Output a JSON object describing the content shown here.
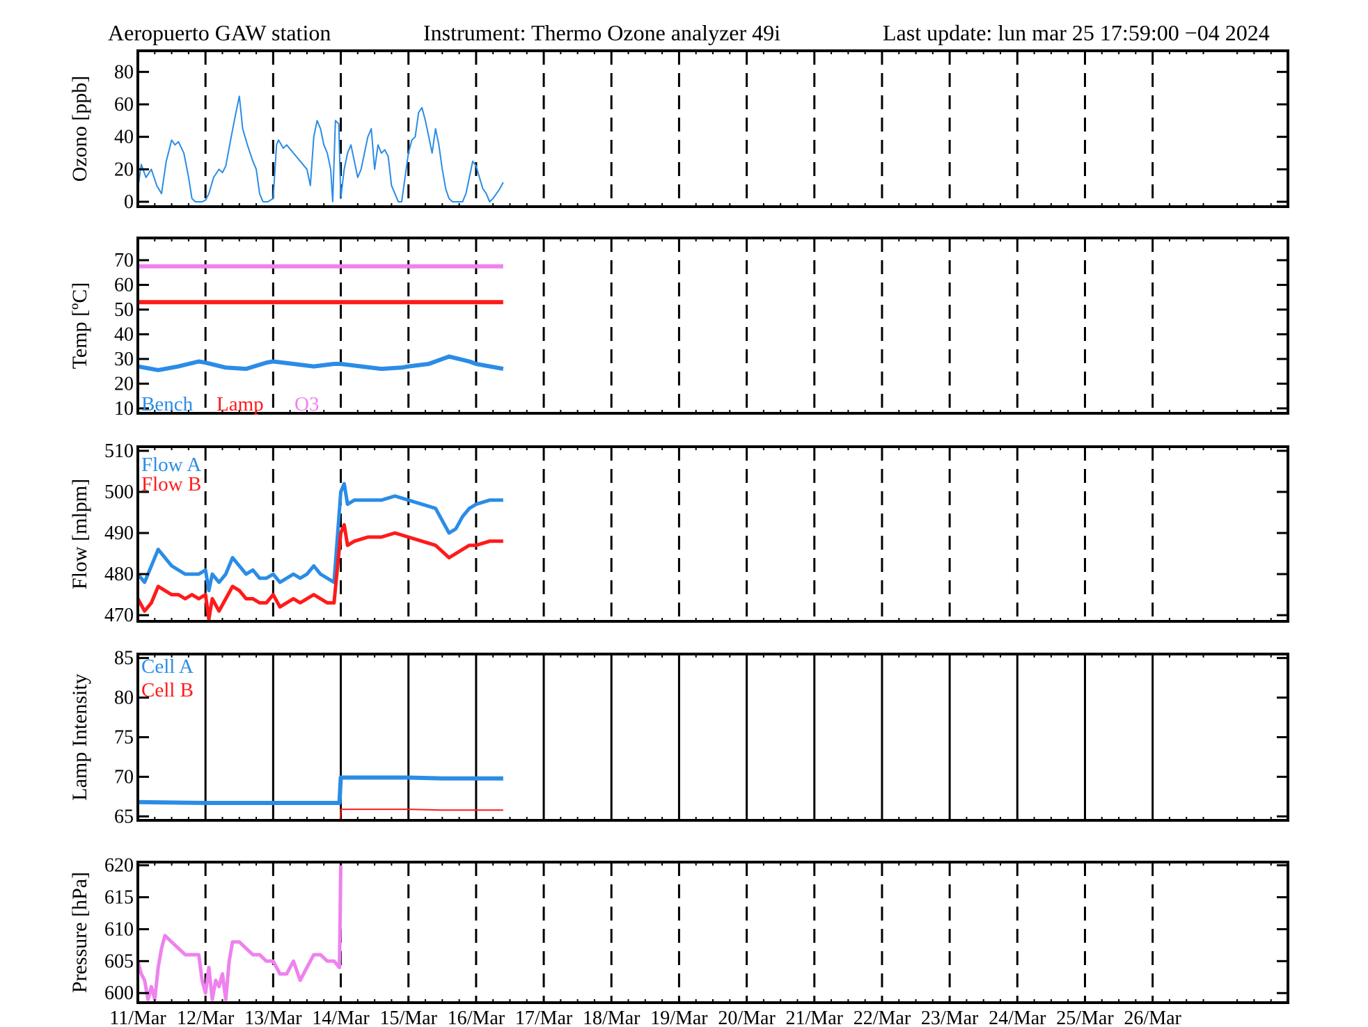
{
  "header": {
    "station": "Aeropuerto GAW station",
    "instrument": "Instrument: Thermo Ozone analyzer  49i",
    "last_update": "Last update: lun mar 25 17:59:00 −04 2024"
  },
  "colors": {
    "blue": "#2b8ce6",
    "red": "#ff1a1a",
    "violet": "#ee82ee",
    "axis": "#000000"
  },
  "chart_data": [
    {
      "type": "line",
      "ylabel": "Ozono [ppb]",
      "ylim": [
        -3,
        93
      ],
      "yticks": [
        0,
        20,
        40,
        60,
        80
      ],
      "grid": "dashed vertical daily",
      "x_unit": "days since 11/Mar",
      "series": [
        {
          "color": "#2b8ce6",
          "x": [
            0.0,
            0.05,
            0.12,
            0.2,
            0.28,
            0.35,
            0.42,
            0.5,
            0.55,
            0.6,
            0.68,
            0.75,
            0.8,
            0.85,
            0.9,
            0.95,
            1.0,
            1.05,
            1.12,
            1.2,
            1.25,
            1.3,
            1.38,
            1.45,
            1.5,
            1.55,
            1.62,
            1.7,
            1.75,
            1.8,
            1.85,
            1.92,
            2.0,
            2.05,
            2.08,
            2.15,
            2.2,
            2.3,
            2.4,
            2.5,
            2.55,
            2.6,
            2.65,
            2.7,
            2.75,
            2.8,
            2.85,
            2.88,
            2.92,
            2.97,
            3.0,
            3.05,
            3.1,
            3.15,
            3.2,
            3.25,
            3.3,
            3.35,
            3.4,
            3.45,
            3.5,
            3.55,
            3.6,
            3.65,
            3.7,
            3.75,
            3.8,
            3.85,
            3.9,
            3.95,
            4.0,
            4.05,
            4.1,
            4.15,
            4.2,
            4.25,
            4.3,
            4.35,
            4.4,
            4.45,
            4.5,
            4.55,
            4.6,
            4.65,
            4.7,
            4.75,
            4.8,
            4.85,
            4.9,
            4.95,
            5.0,
            5.05,
            5.1,
            5.15,
            5.2,
            5.25,
            5.3,
            5.35,
            5.4
          ],
          "values": [
            8,
            23,
            15,
            20,
            10,
            5,
            25,
            38,
            35,
            37,
            30,
            15,
            2,
            0,
            0,
            0,
            1,
            5,
            15,
            20,
            18,
            22,
            40,
            55,
            65,
            45,
            35,
            25,
            20,
            5,
            0,
            0,
            2,
            35,
            38,
            33,
            35,
            30,
            25,
            20,
            10,
            40,
            50,
            45,
            35,
            30,
            20,
            0,
            50,
            48,
            2,
            20,
            30,
            35,
            25,
            15,
            20,
            30,
            40,
            45,
            20,
            35,
            30,
            32,
            28,
            10,
            5,
            0,
            0,
            15,
            30,
            38,
            40,
            55,
            58,
            50,
            40,
            30,
            45,
            35,
            20,
            8,
            2,
            0,
            0,
            0,
            0,
            5,
            15,
            25,
            22,
            15,
            8,
            5,
            0,
            2,
            5,
            8,
            12
          ]
        }
      ]
    },
    {
      "type": "line",
      "ylabel": "Temp [ºC]",
      "ylim": [
        8,
        79
      ],
      "yticks": [
        10,
        20,
        30,
        40,
        50,
        60,
        70
      ],
      "grid": "dashed vertical daily",
      "legend_placement": "bottom-left",
      "series": [
        {
          "name": "Bench",
          "color": "#2b8ce6",
          "x": [
            0.0,
            0.3,
            0.6,
            0.9,
            1.0,
            1.3,
            1.6,
            1.9,
            2.0,
            2.3,
            2.6,
            2.9,
            3.0,
            3.3,
            3.6,
            3.9,
            4.0,
            4.3,
            4.6,
            4.9,
            5.0,
            5.2,
            5.4
          ],
          "values": [
            27,
            25.5,
            27,
            29,
            28.5,
            26.5,
            26,
            28.5,
            29,
            28,
            27,
            28,
            28,
            27,
            26,
            26.5,
            27,
            28,
            31,
            29,
            28,
            27,
            26
          ]
        },
        {
          "name": "Lamp",
          "color": "#ff1a1a",
          "x": [
            0.0,
            5.4
          ],
          "values": [
            53,
            53
          ]
        },
        {
          "name": "O3",
          "color": "#ee82ee",
          "x": [
            0.0,
            5.4
          ],
          "values": [
            67.5,
            67.5
          ]
        }
      ]
    },
    {
      "type": "line",
      "ylabel": "Flow [mlpm]",
      "ylim": [
        468.5,
        511
      ],
      "yticks": [
        470,
        480,
        490,
        500,
        510
      ],
      "grid": "dashed vertical daily",
      "legend_placement": "top-left",
      "series": [
        {
          "name": "Flow A",
          "color": "#2b8ce6",
          "x": [
            0.0,
            0.1,
            0.2,
            0.3,
            0.4,
            0.5,
            0.6,
            0.7,
            0.8,
            0.9,
            1.0,
            1.05,
            1.1,
            1.2,
            1.3,
            1.4,
            1.5,
            1.6,
            1.7,
            1.8,
            1.9,
            2.0,
            2.1,
            2.2,
            2.3,
            2.4,
            2.5,
            2.6,
            2.7,
            2.8,
            2.9,
            3.0,
            3.05,
            3.1,
            3.2,
            3.4,
            3.6,
            3.8,
            4.0,
            4.2,
            4.4,
            4.6,
            4.7,
            4.8,
            4.9,
            5.0,
            5.2,
            5.4
          ],
          "values": [
            480,
            478,
            482,
            486,
            484,
            482,
            481,
            480,
            480,
            480,
            481,
            476,
            480,
            478,
            480,
            484,
            482,
            480,
            481,
            479,
            479,
            480,
            478,
            479,
            480,
            479,
            480,
            482,
            480,
            479,
            478,
            500,
            502,
            497,
            498,
            498,
            498,
            499,
            498,
            497,
            496,
            490,
            491,
            494,
            496,
            497,
            498,
            498
          ]
        },
        {
          "name": "Flow B",
          "color": "#ff1a1a",
          "x": [
            0.0,
            0.1,
            0.2,
            0.3,
            0.4,
            0.5,
            0.6,
            0.7,
            0.8,
            0.9,
            1.0,
            1.05,
            1.1,
            1.2,
            1.3,
            1.4,
            1.5,
            1.6,
            1.7,
            1.8,
            1.9,
            2.0,
            2.1,
            2.2,
            2.3,
            2.4,
            2.5,
            2.6,
            2.7,
            2.8,
            2.9,
            3.0,
            3.05,
            3.1,
            3.2,
            3.4,
            3.6,
            3.8,
            4.0,
            4.2,
            4.4,
            4.6,
            4.7,
            4.8,
            4.9,
            5.0,
            5.2,
            5.4
          ],
          "values": [
            474,
            471,
            473,
            477,
            476,
            475,
            475,
            474,
            475,
            474,
            475,
            469,
            474,
            471,
            474,
            477,
            476,
            474,
            474,
            473,
            473,
            475,
            472,
            473,
            474,
            473,
            474,
            475,
            474,
            473,
            473,
            490,
            492,
            487,
            488,
            489,
            489,
            490,
            489,
            488,
            487,
            484,
            485,
            486,
            487,
            487,
            488,
            488
          ]
        }
      ]
    },
    {
      "type": "line",
      "ylabel": "Lamp Intensity",
      "ylim": [
        64.5,
        85.5
      ],
      "yticks": [
        65,
        70,
        75,
        80,
        85
      ],
      "grid": "solid vertical daily",
      "legend_placement": "top-left",
      "series": [
        {
          "name": "Cell A",
          "color": "#2b8ce6",
          "x": [
            0.0,
            1.0,
            2.0,
            2.98,
            3.0,
            3.5,
            4.0,
            4.5,
            5.0,
            5.4
          ],
          "values": [
            66.8,
            66.7,
            66.7,
            66.7,
            69.9,
            69.9,
            69.9,
            69.8,
            69.8,
            69.8
          ]
        },
        {
          "name": "Cell B",
          "color": "#ff1a1a",
          "x": [
            2.99,
            3.0,
            3.5,
            4.0,
            4.5,
            5.0,
            5.4
          ],
          "values": [
            64.5,
            65.9,
            65.9,
            65.9,
            65.8,
            65.8,
            65.8
          ]
        }
      ]
    },
    {
      "type": "line",
      "ylabel": "Pressure [hPa]",
      "ylim": [
        598.5,
        620.5
      ],
      "yticks": [
        600,
        605,
        610,
        615,
        620
      ],
      "grid": "dashed vertical daily",
      "xticks": [
        "11/Mar",
        "12/Mar",
        "13/Mar",
        "14/Mar",
        "15/Mar",
        "16/Mar",
        "17/Mar",
        "18/Mar",
        "19/Mar",
        "20/Mar",
        "21/Mar",
        "22/Mar",
        "23/Mar",
        "24/Mar",
        "25/Mar",
        "26/Mar"
      ],
      "series": [
        {
          "color": "#ee82ee",
          "x": [
            0.0,
            0.05,
            0.1,
            0.15,
            0.2,
            0.25,
            0.3,
            0.35,
            0.4,
            0.5,
            0.6,
            0.7,
            0.8,
            0.9,
            0.95,
            1.0,
            1.05,
            1.1,
            1.15,
            1.2,
            1.25,
            1.3,
            1.35,
            1.4,
            1.5,
            1.6,
            1.7,
            1.8,
            1.9,
            2.0,
            2.1,
            2.2,
            2.3,
            2.4,
            2.5,
            2.6,
            2.7,
            2.8,
            2.9,
            2.98,
            3.0
          ],
          "values": [
            605,
            603,
            602,
            599,
            601,
            599,
            604,
            607,
            609,
            608,
            607,
            606,
            606,
            606,
            602,
            600,
            604,
            599,
            602,
            601,
            603,
            599,
            605,
            608,
            608,
            607,
            606,
            606,
            605,
            605,
            603,
            603,
            605,
            602,
            604,
            606,
            606,
            605,
            605,
            604,
            620
          ]
        }
      ]
    }
  ]
}
